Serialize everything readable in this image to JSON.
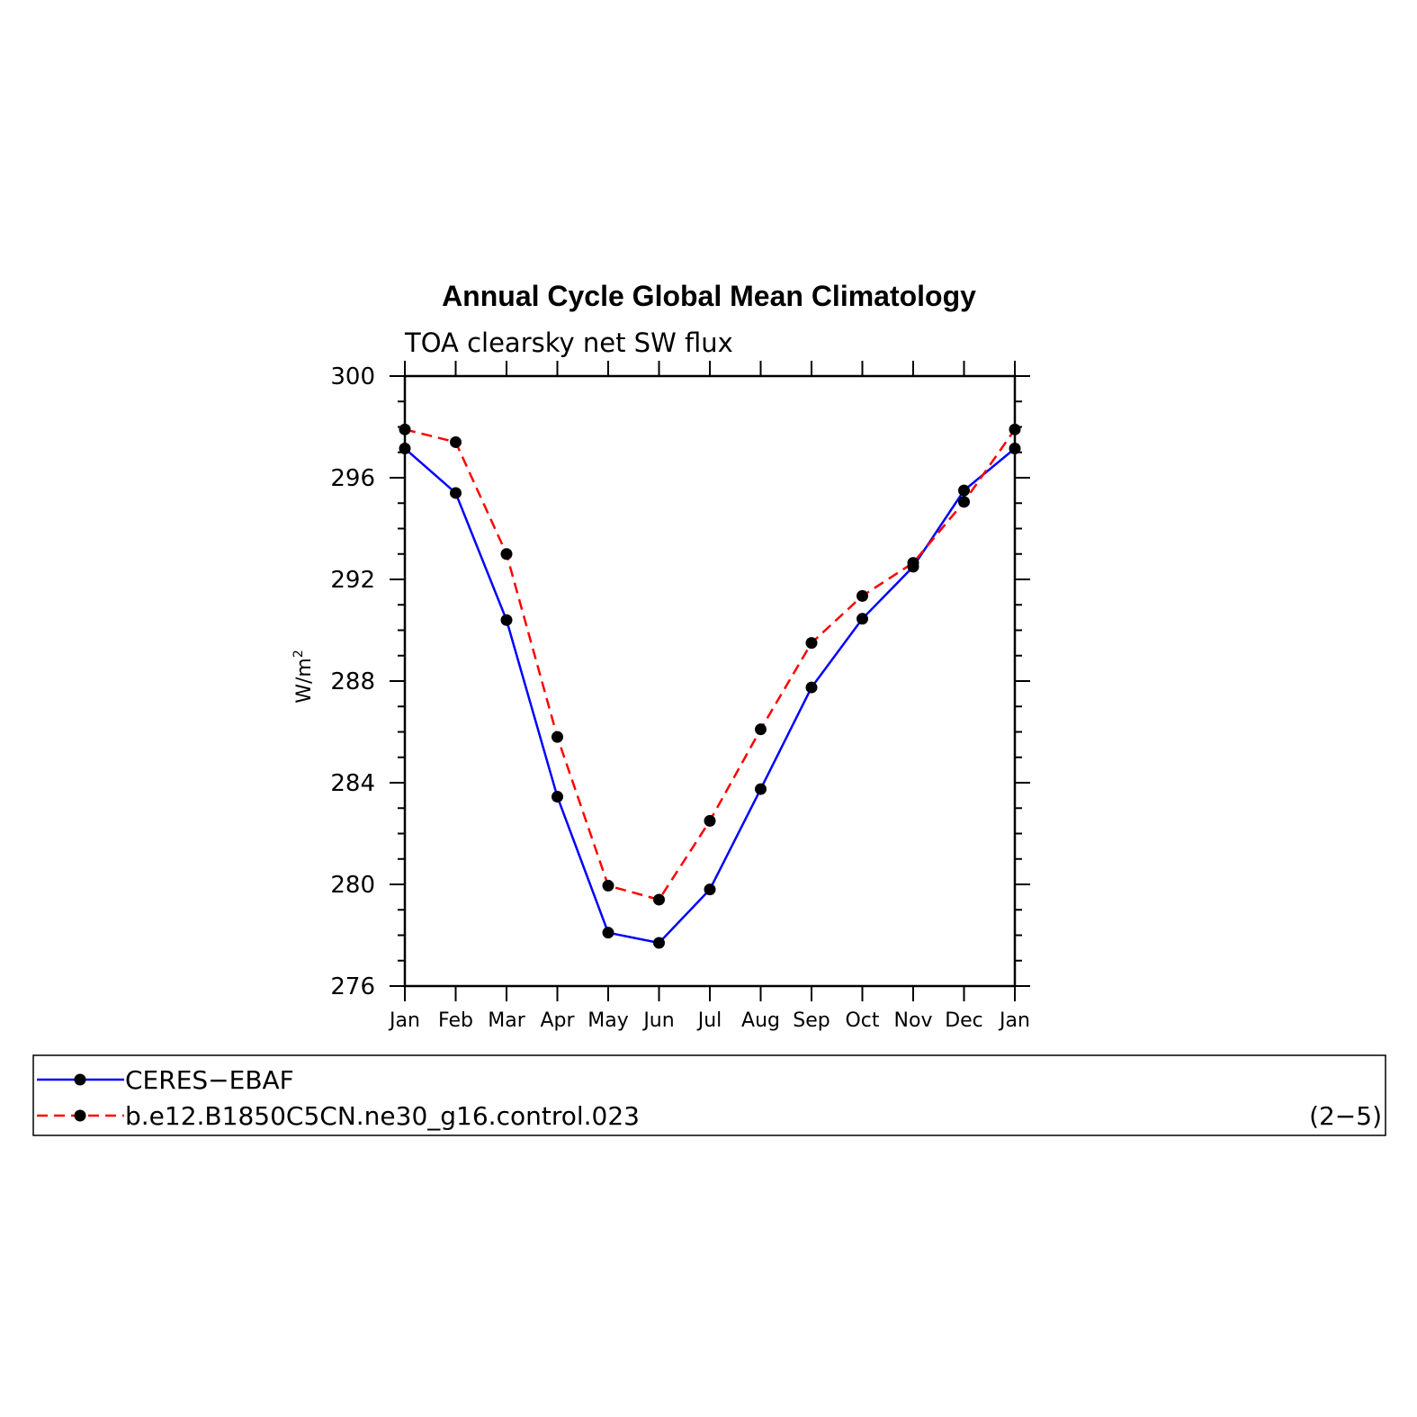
{
  "chart_data": {
    "type": "line",
    "title": "Annual Cycle Global Mean Climatology",
    "subtitle": "TOA clearsky net SW flux",
    "ylabel": "W/m",
    "ylabel_superscript": "2",
    "ylim": [
      276,
      300
    ],
    "yticks": [
      "276",
      "280",
      "284",
      "288",
      "292",
      "296",
      "300"
    ],
    "categories": [
      "Jan",
      "Feb",
      "Mar",
      "Apr",
      "May",
      "Jun",
      "Jul",
      "Aug",
      "Sep",
      "Oct",
      "Nov",
      "Dec",
      "Jan"
    ],
    "series": [
      {
        "name": "CERES−EBAF",
        "color": "#0000ff",
        "dashed": false,
        "values": [
          297.15,
          295.4,
          290.4,
          283.45,
          278.1,
          277.7,
          279.8,
          283.75,
          287.75,
          290.45,
          292.5,
          295.5,
          297.15
        ]
      },
      {
        "name": "b.e12.B1850C5CN.ne30_g16.control.023",
        "color": "#ff0000",
        "dashed": true,
        "values": [
          297.9,
          297.4,
          293.0,
          285.8,
          279.95,
          279.4,
          282.5,
          286.1,
          289.5,
          291.35,
          292.65,
          295.05,
          297.9
        ]
      }
    ]
  },
  "legend": {
    "note": "(2−5)"
  }
}
